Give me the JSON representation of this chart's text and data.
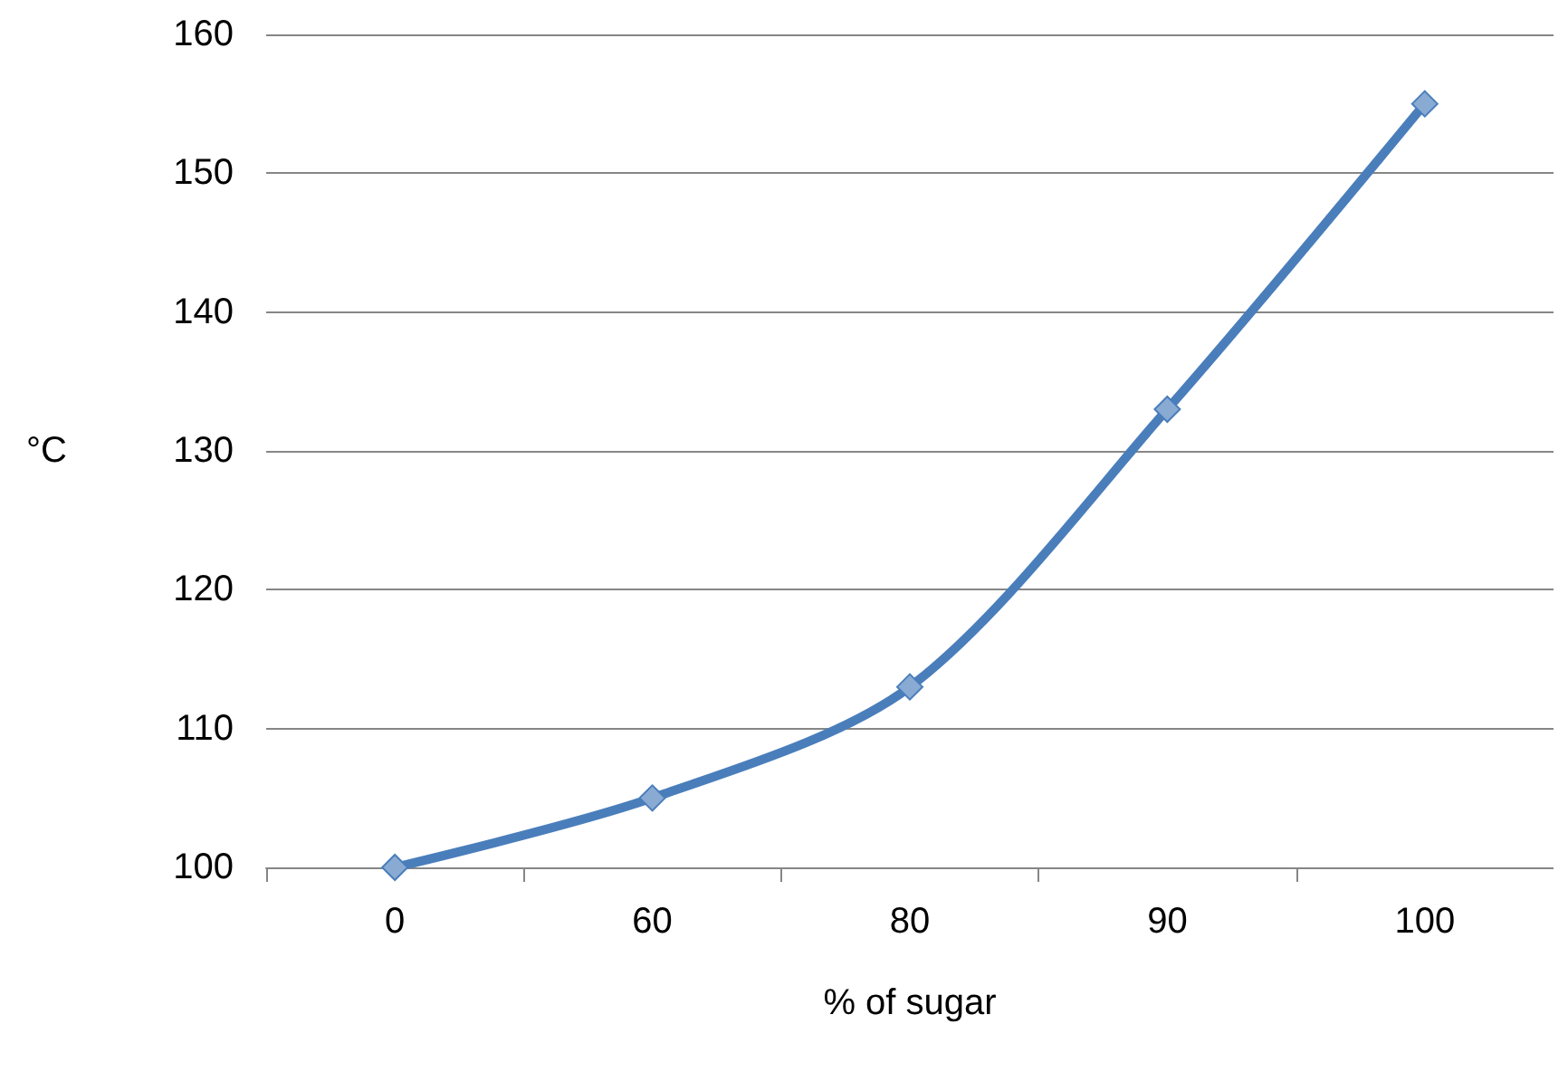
{
  "chart_data": {
    "type": "line",
    "xlabel": "% of sugar",
    "ylabel": "°C",
    "categories": [
      "0",
      "60",
      "80",
      "90",
      "100"
    ],
    "series": [
      {
        "color": "#4a7ebb",
        "values": [
          100,
          105,
          113,
          133,
          155
        ]
      }
    ],
    "ylim": [
      100,
      160
    ],
    "yticks": [
      100,
      110,
      120,
      130,
      140,
      150,
      160
    ],
    "grid": "y",
    "marker": "diamond",
    "line_style": "solid"
  }
}
